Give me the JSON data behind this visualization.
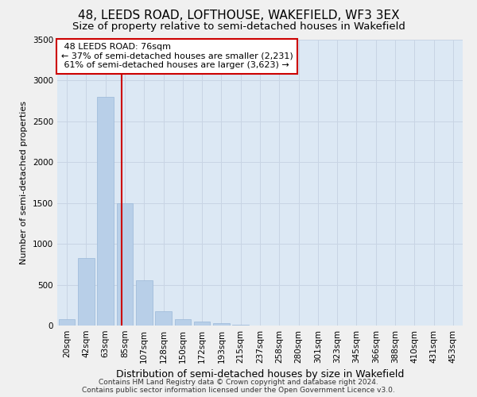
{
  "title": "48, LEEDS ROAD, LOFTHOUSE, WAKEFIELD, WF3 3EX",
  "subtitle": "Size of property relative to semi-detached houses in Wakefield",
  "xlabel": "Distribution of semi-detached houses by size in Wakefield",
  "ylabel": "Number of semi-detached properties",
  "footer_line1": "Contains HM Land Registry data © Crown copyright and database right 2024.",
  "footer_line2": "Contains public sector information licensed under the Open Government Licence v3.0.",
  "categories": [
    "20sqm",
    "42sqm",
    "63sqm",
    "85sqm",
    "107sqm",
    "128sqm",
    "150sqm",
    "172sqm",
    "193sqm",
    "215sqm",
    "237sqm",
    "258sqm",
    "280sqm",
    "301sqm",
    "323sqm",
    "345sqm",
    "366sqm",
    "388sqm",
    "410sqm",
    "431sqm",
    "453sqm"
  ],
  "values": [
    75,
    825,
    2800,
    1500,
    550,
    175,
    80,
    50,
    30,
    5,
    2,
    1,
    1,
    0,
    0,
    0,
    0,
    0,
    0,
    0,
    0
  ],
  "bar_color": "#b8cfe8",
  "bar_edge_color": "#9ab8d8",
  "grid_color": "#c8d4e4",
  "bg_color": "#dce8f4",
  "marker_label": "48 LEEDS ROAD: 76sqm",
  "marker_pct_smaller": "37%",
  "marker_count_smaller": "2,231",
  "marker_pct_larger": "61%",
  "marker_count_larger": "3,623",
  "ylim": [
    0,
    3500
  ],
  "annotation_box_color": "#ffffff",
  "annotation_box_edge": "#cc0000",
  "vline_color": "#cc0000",
  "title_fontsize": 11,
  "subtitle_fontsize": 9.5,
  "xlabel_fontsize": 9,
  "ylabel_fontsize": 8,
  "tick_fontsize": 7.5,
  "annotation_fontsize": 8,
  "footer_fontsize": 6.5
}
